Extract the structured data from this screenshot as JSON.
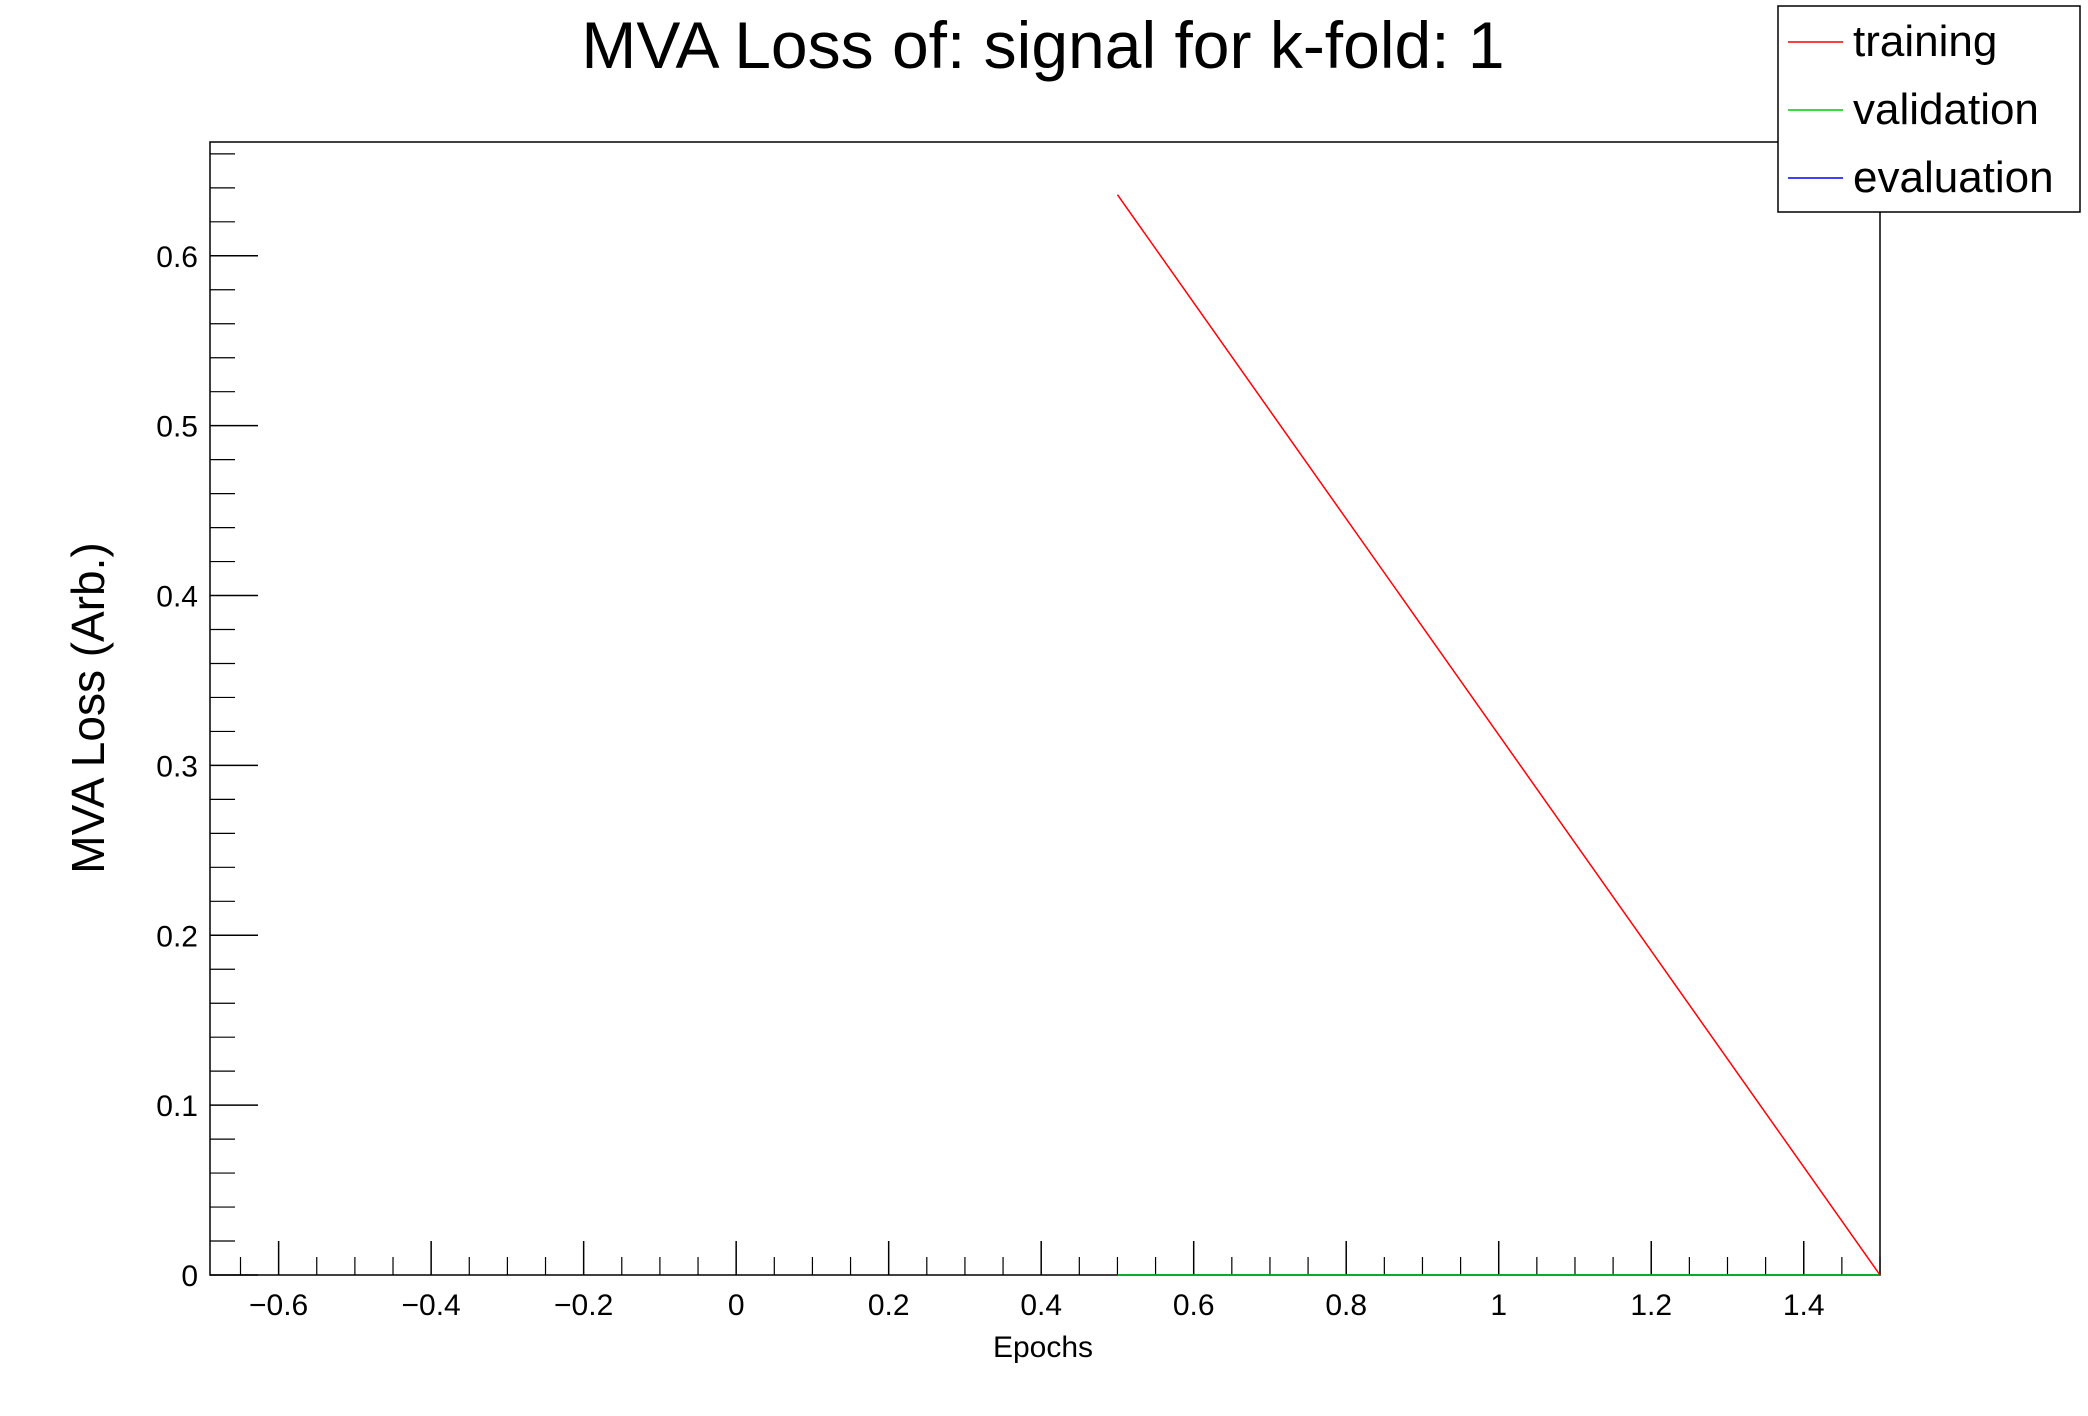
{
  "chart_data": {
    "type": "line",
    "title": "MVA Loss of: signal for k-fold: 1",
    "xlabel": "Epochs",
    "ylabel": "MVA Loss (Arb.)",
    "xlim": [
      -0.69,
      1.5
    ],
    "ylim": [
      0,
      0.667
    ],
    "x_ticks": [
      -0.6,
      -0.4,
      -0.2,
      0,
      0.2,
      0.4,
      0.6,
      0.8,
      1,
      1.2,
      1.4
    ],
    "x_tick_labels": [
      "−0.6",
      "−0.4",
      "−0.2",
      "0",
      "0.2",
      "0.4",
      "0.6",
      "0.8",
      "1",
      "1.2",
      "1.4"
    ],
    "y_ticks": [
      0,
      0.1,
      0.2,
      0.3,
      0.4,
      0.5,
      0.6
    ],
    "y_tick_labels": [
      "0",
      "0.1",
      "0.2",
      "0.3",
      "0.4",
      "0.5",
      "0.6"
    ],
    "grid": false,
    "legend_position": "top-right",
    "series": [
      {
        "name": "training",
        "color": "#ff0000",
        "x": [
          0.5,
          1.5
        ],
        "y": [
          0.636,
          0.0
        ]
      },
      {
        "name": "validation",
        "color": "#00cc00",
        "x": [
          0.5,
          1.5
        ],
        "y": [
          0.0,
          0.0
        ]
      },
      {
        "name": "evaluation",
        "color": "#0000ff",
        "x": [
          0.5,
          1.5
        ],
        "y": [
          0.0,
          0.0
        ]
      }
    ]
  }
}
